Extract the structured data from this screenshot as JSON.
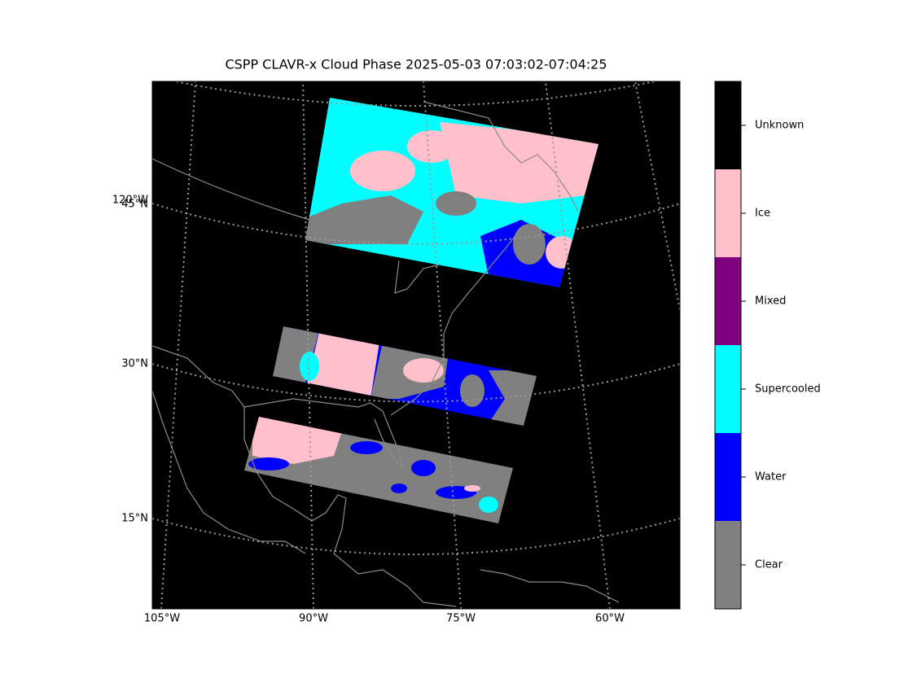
{
  "title": "CSPP CLAVR-x Cloud Phase 2025-05-03 07:03:02-07:04:25",
  "left_labels": [
    "120°W",
    "45°N",
    "30°N",
    "15°N"
  ],
  "bottom_labels": [
    "105°W",
    "90°W",
    "75°W",
    "60°W"
  ],
  "colorbar": [
    {
      "label": "Clear",
      "color": "#808080"
    },
    {
      "label": "Water",
      "color": "#0000ff"
    },
    {
      "label": "Supercooled",
      "color": "#00ffff"
    },
    {
      "label": "Mixed",
      "color": "#800080"
    },
    {
      "label": "Ice",
      "color": "#ffc0cb"
    },
    {
      "label": "Unknown",
      "color": "#000000"
    }
  ]
}
